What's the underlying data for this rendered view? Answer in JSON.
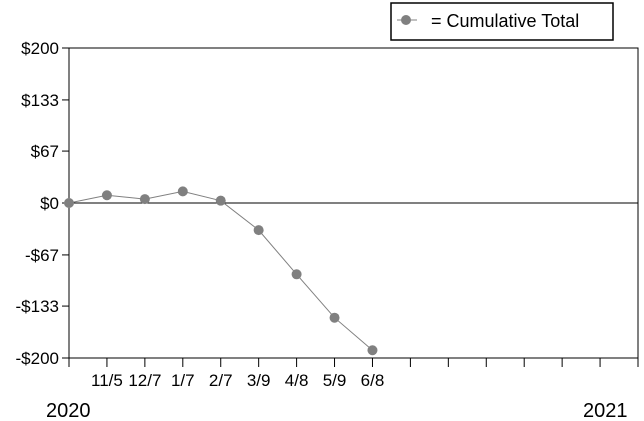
{
  "chart_data": {
    "type": "line",
    "y_tick_labels": [
      "$200",
      "$133",
      "$67",
      "$0",
      "-$67",
      "-$133",
      "-$200"
    ],
    "y_tick_values": [
      200,
      133,
      67,
      0,
      -67,
      -133,
      -200
    ],
    "ylim": [
      -200,
      200
    ],
    "x_tick_labels": [
      "",
      "11/5",
      "12/7",
      "1/7",
      "2/7",
      "3/9",
      "4/8",
      "5/9",
      "6/8",
      "",
      "",
      "",
      "",
      "",
      ""
    ],
    "x_tick_count": 15,
    "year_labels": {
      "start": "2020",
      "end": "2021"
    },
    "series": [
      {
        "name": "= Cumulative Total",
        "color": "#808080",
        "x_index": [
          0,
          1,
          2,
          3,
          4,
          5,
          6,
          7,
          8
        ],
        "values": [
          0,
          10,
          5,
          15,
          3,
          -35,
          -92,
          -148,
          -190
        ]
      }
    ],
    "legend": {
      "label": "= Cumulative Total",
      "position": "top-right"
    },
    "zero_line": true,
    "grid": false
  }
}
